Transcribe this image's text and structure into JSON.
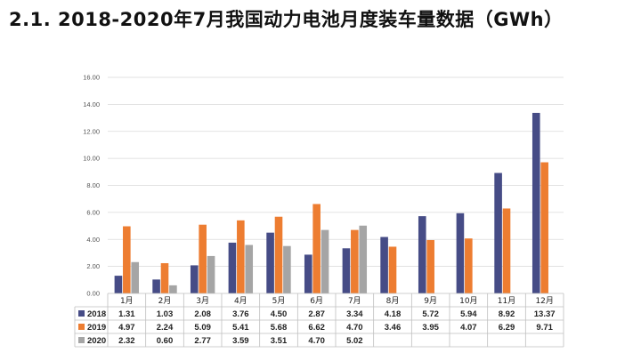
{
  "page": {
    "title": "2.1. 2018-2020年7月我国动力电池月度装车量数据（GWh）"
  },
  "colors": {
    "2018": "#464C86",
    "2019": "#ED7D31",
    "2020": "#A5A5A5",
    "grid": "#D9D9D9"
  },
  "chart_data": {
    "type": "bar",
    "title": "",
    "categories": [
      "1月",
      "2月",
      "3月",
      "4月",
      "5月",
      "6月",
      "7月",
      "8月",
      "9月",
      "10月",
      "11月",
      "12月"
    ],
    "series": [
      {
        "name": "2018",
        "values": [
          1.31,
          1.03,
          2.08,
          3.76,
          4.5,
          2.87,
          3.34,
          4.18,
          5.72,
          5.94,
          8.92,
          13.37
        ]
      },
      {
        "name": "2019",
        "values": [
          4.97,
          2.24,
          5.09,
          5.41,
          5.68,
          6.62,
          4.7,
          3.46,
          3.95,
          4.07,
          6.29,
          9.71
        ]
      },
      {
        "name": "2020",
        "values": [
          2.32,
          0.6,
          2.77,
          3.59,
          3.51,
          4.7,
          5.02,
          null,
          null,
          null,
          null,
          null
        ]
      }
    ],
    "yticks": [
      "0.00",
      "2.00",
      "4.00",
      "6.00",
      "8.00",
      "10.00",
      "12.00",
      "14.00",
      "16.00"
    ],
    "ylim": [
      0,
      16
    ],
    "grid": true,
    "legend": "data-table-left"
  }
}
